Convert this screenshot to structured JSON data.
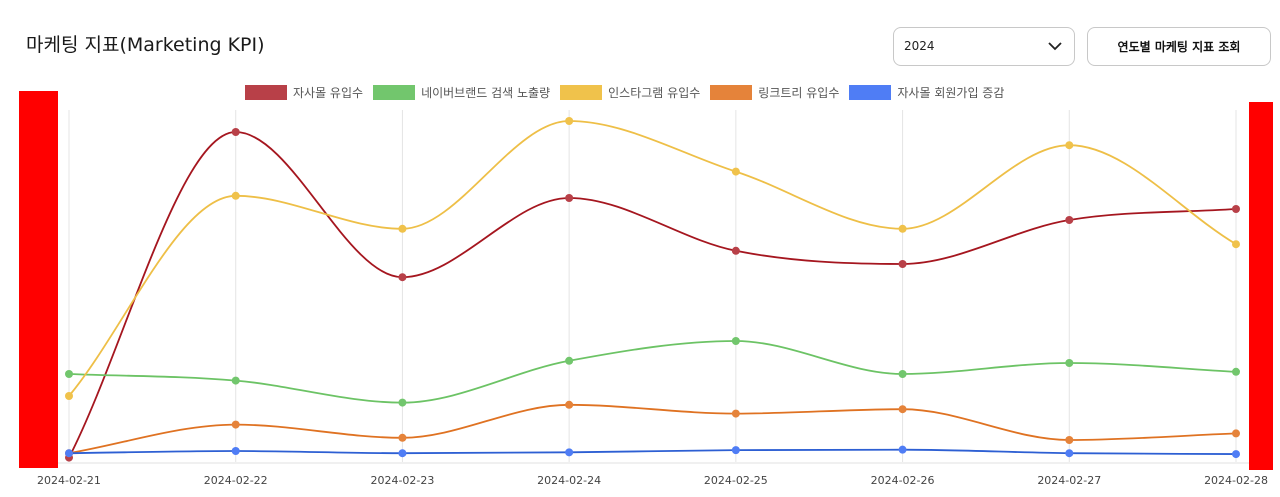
{
  "page": {
    "title": "마케팅 지표(Marketing KPI)"
  },
  "controls": {
    "year_value": "2024",
    "query_button": "연도별 마케팅 지표 조회"
  },
  "chart_data": {
    "type": "line",
    "x": [
      "2024-02-21",
      "2024-02-22",
      "2024-02-23",
      "2024-02-24",
      "2024-02-25",
      "2024-02-26",
      "2024-02-27",
      "2024-02-28"
    ],
    "ylim": [
      0,
      8
    ],
    "grid": "vertical",
    "legend": "top",
    "series": [
      {
        "name": "자사몰 유입수",
        "color": "#b84048",
        "line_color": "#a5161f",
        "point_color": "#b84048",
        "values": [
          0.1,
          7.5,
          4.2,
          6.0,
          4.8,
          4.5,
          5.5,
          5.75
        ]
      },
      {
        "name": "네이버브랜드 검색 노출량",
        "color": "#72c66d",
        "line_color": "#6cc365",
        "point_color": "#72c66d",
        "values": [
          2.0,
          1.85,
          1.35,
          2.3,
          2.75,
          2.0,
          2.25,
          2.05
        ]
      },
      {
        "name": "인스타그램 유입수",
        "color": "#f0c24b",
        "line_color": "#eebf47",
        "point_color": "#f0c24b",
        "values": [
          1.5,
          6.05,
          5.3,
          7.75,
          6.6,
          5.3,
          7.2,
          4.95
        ]
      },
      {
        "name": "링크트리 유입수",
        "color": "#e5833a",
        "line_color": "#df7222",
        "point_color": "#e5833a",
        "values": [
          0.2,
          0.85,
          0.55,
          1.3,
          1.1,
          1.2,
          0.5,
          0.65
        ]
      },
      {
        "name": "자사몰 회원가입 증감",
        "color": "#4f7df5",
        "line_color": "#2d5fd3",
        "point_color": "#4f7df5",
        "values": [
          0.2,
          0.25,
          0.2,
          0.22,
          0.27,
          0.28,
          0.2,
          0.18
        ]
      }
    ]
  }
}
